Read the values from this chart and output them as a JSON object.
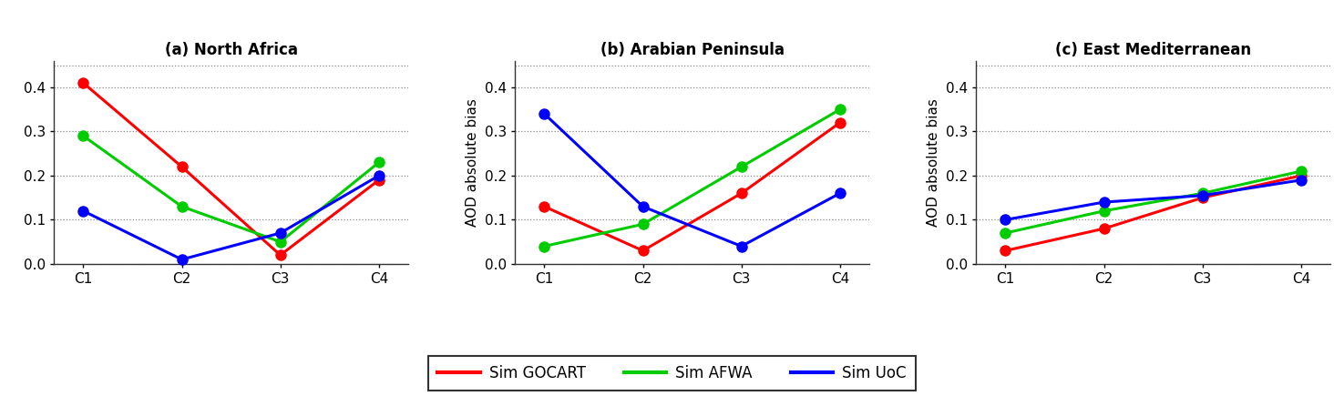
{
  "panels": [
    {
      "title": "(a) North Africa",
      "show_ylabel": false,
      "data": {
        "GOCART": [
          0.41,
          0.22,
          0.02,
          0.19
        ],
        "AFWA": [
          0.29,
          0.13,
          0.05,
          0.23
        ],
        "UoC": [
          0.12,
          0.01,
          0.07,
          0.2
        ]
      }
    },
    {
      "title": "(b) Arabian Peninsula",
      "show_ylabel": true,
      "data": {
        "GOCART": [
          0.13,
          0.03,
          0.16,
          0.32
        ],
        "AFWA": [
          0.04,
          0.09,
          0.22,
          0.35
        ],
        "UoC": [
          0.34,
          0.13,
          0.04,
          0.16
        ]
      }
    },
    {
      "title": "(c) East Mediterranean",
      "show_ylabel": true,
      "data": {
        "GOCART": [
          0.03,
          0.08,
          0.15,
          0.2
        ],
        "AFWA": [
          0.07,
          0.12,
          0.16,
          0.21
        ],
        "UoC": [
          0.1,
          0.14,
          0.155,
          0.19
        ]
      }
    }
  ],
  "x_labels": [
    "C1",
    "C2",
    "C3",
    "C4"
  ],
  "colors": {
    "GOCART": "#ff0000",
    "AFWA": "#00cc00",
    "UoC": "#0000ff"
  },
  "legend_labels": {
    "GOCART": "Sim GOCART",
    "AFWA": "Sim AFWA",
    "UoC": "Sim UoC"
  },
  "ylim": [
    0,
    0.46
  ],
  "yticks": [
    0,
    0.1,
    0.2,
    0.3,
    0.4
  ],
  "ylabel": "AOD absolute bias",
  "marker": "o",
  "linewidth": 2.2,
  "markersize": 8,
  "title_fontsize": 12,
  "tick_fontsize": 11,
  "label_fontsize": 11,
  "legend_fontsize": 12,
  "bg_color": "#ffffff"
}
